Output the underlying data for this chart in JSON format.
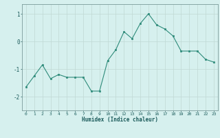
{
  "x": [
    0,
    1,
    2,
    3,
    4,
    5,
    6,
    7,
    8,
    9,
    10,
    11,
    12,
    13,
    14,
    15,
    16,
    17,
    18,
    19,
    20,
    21,
    22,
    23
  ],
  "y": [
    -1.65,
    -1.25,
    -0.85,
    -1.35,
    -1.2,
    -1.3,
    -1.3,
    -1.3,
    -1.8,
    -1.8,
    -0.7,
    -0.3,
    0.35,
    0.1,
    0.65,
    1.0,
    0.6,
    0.45,
    0.2,
    -0.35,
    -0.35,
    -0.35,
    -0.65,
    -0.75
  ],
  "xlim": [
    -0.5,
    23.5
  ],
  "ylim": [
    -2.5,
    1.35
  ],
  "yticks": [
    -2,
    -1,
    0,
    1
  ],
  "xticks": [
    0,
    1,
    2,
    3,
    4,
    5,
    6,
    7,
    8,
    9,
    10,
    11,
    12,
    13,
    14,
    15,
    16,
    17,
    18,
    19,
    20,
    21,
    22,
    23
  ],
  "xlabel": "Humidex (Indice chaleur)",
  "line_color": "#2e8b7a",
  "marker_color": "#2e8b7a",
  "bg_color": "#d6f0ee",
  "grid_color": "#c0d8d4",
  "axis_color": "#7a9a9a",
  "text_color": "#1a5a5a",
  "title": ""
}
